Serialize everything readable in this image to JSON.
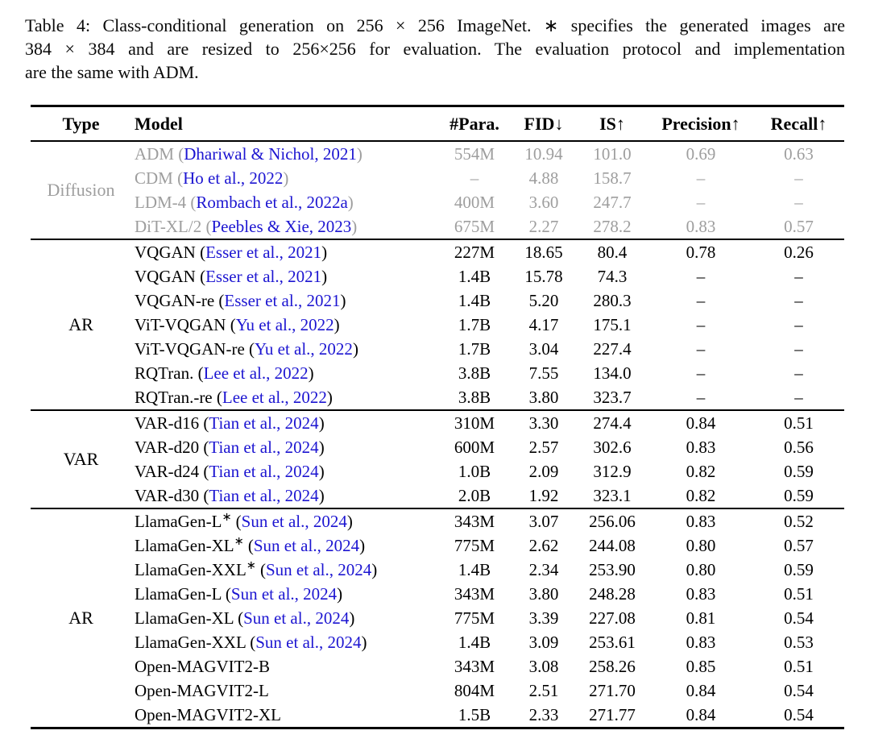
{
  "colors": {
    "link": "#1c15d1",
    "muted_text": "#9e9e9e",
    "text": "#000000",
    "rule": "#000000",
    "background": "#ffffff"
  },
  "caption": {
    "lines": [
      "Table 4: Class-conditional generation on 256 × 256 ImageNet. ∗ specifies the generated images are",
      "384 × 384 and are resized to 256×256 for evaluation. The evaluation protocol and implementation",
      "are the same with ADM."
    ]
  },
  "table": {
    "headers": [
      {
        "id": "type",
        "label": "Type",
        "arrow": ""
      },
      {
        "id": "model",
        "label": "Model",
        "arrow": ""
      },
      {
        "id": "para",
        "label": "#Para.",
        "arrow": ""
      },
      {
        "id": "fid",
        "label": "FID",
        "arrow": "↓"
      },
      {
        "id": "is",
        "label": "IS",
        "arrow": "↑"
      },
      {
        "id": "precision",
        "label": "Precision",
        "arrow": "↑"
      },
      {
        "id": "recall",
        "label": "Recall",
        "arrow": "↑"
      }
    ],
    "sections": [
      {
        "type": "Diffusion",
        "muted": true,
        "rows": [
          {
            "model": "ADM",
            "citation": "Dhariwal & Nichol, 2021",
            "params": "554M",
            "fid": "10.94",
            "is": "101.0",
            "precision": "0.69",
            "recall": "0.63"
          },
          {
            "model": "CDM",
            "citation": "Ho et al., 2022",
            "params": "–",
            "fid": "4.88",
            "is": "158.7",
            "precision": "–",
            "recall": "–"
          },
          {
            "model": "LDM-4",
            "citation": "Rombach et al., 2022a",
            "params": "400M",
            "fid": "3.60",
            "is": "247.7",
            "precision": "–",
            "recall": "–"
          },
          {
            "model": "DiT-XL/2",
            "citation": "Peebles & Xie, 2023",
            "params": "675M",
            "fid": "2.27",
            "is": "278.2",
            "precision": "0.83",
            "recall": "0.57"
          }
        ]
      },
      {
        "type": "AR",
        "muted": false,
        "rows": [
          {
            "model": "VQGAN",
            "citation": "Esser et al., 2021",
            "params": "227M",
            "fid": "18.65",
            "is": "80.4",
            "precision": "0.78",
            "recall": "0.26"
          },
          {
            "model": "VQGAN",
            "citation": "Esser et al., 2021",
            "params": "1.4B",
            "fid": "15.78",
            "is": "74.3",
            "precision": "–",
            "recall": "–"
          },
          {
            "model": "VQGAN-re",
            "citation": "Esser et al., 2021",
            "params": "1.4B",
            "fid": "5.20",
            "is": "280.3",
            "precision": "–",
            "recall": "–"
          },
          {
            "model": "ViT-VQGAN",
            "citation": "Yu et al., 2022",
            "params": "1.7B",
            "fid": "4.17",
            "is": "175.1",
            "precision": "–",
            "recall": "–"
          },
          {
            "model": "ViT-VQGAN-re",
            "citation": "Yu et al., 2022",
            "params": "1.7B",
            "fid": "3.04",
            "is": "227.4",
            "precision": "–",
            "recall": "–"
          },
          {
            "model": "RQTran.",
            "citation": "Lee et al., 2022",
            "params": "3.8B",
            "fid": "7.55",
            "is": "134.0",
            "precision": "–",
            "recall": "–"
          },
          {
            "model": "RQTran.-re",
            "citation": "Lee et al., 2022",
            "params": "3.8B",
            "fid": "3.80",
            "is": "323.7",
            "precision": "–",
            "recall": "–"
          }
        ]
      },
      {
        "type": "VAR",
        "muted": false,
        "rows": [
          {
            "model": "VAR-d16",
            "citation": "Tian et al., 2024",
            "params": "310M",
            "fid": "3.30",
            "is": "274.4",
            "precision": "0.84",
            "recall": "0.51"
          },
          {
            "model": "VAR-d20",
            "citation": "Tian et al., 2024",
            "params": "600M",
            "fid": "2.57",
            "is": "302.6",
            "precision": "0.83",
            "recall": "0.56"
          },
          {
            "model": "VAR-d24",
            "citation": "Tian et al., 2024",
            "params": "1.0B",
            "fid": "2.09",
            "is": "312.9",
            "precision": "0.82",
            "recall": "0.59"
          },
          {
            "model": "VAR-d30",
            "citation": "Tian et al., 2024",
            "params": "2.0B",
            "fid": "1.92",
            "is": "323.1",
            "precision": "0.82",
            "recall": "0.59"
          }
        ]
      },
      {
        "type": "AR",
        "muted": false,
        "rows": [
          {
            "model": "LlamaGen-L*",
            "citation": "Sun et al., 2024",
            "params": "343M",
            "fid": "3.07",
            "is": "256.06",
            "precision": "0.83",
            "recall": "0.52"
          },
          {
            "model": "LlamaGen-XL*",
            "citation": "Sun et al., 2024",
            "params": "775M",
            "fid": "2.62",
            "is": "244.08",
            "precision": "0.80",
            "recall": "0.57"
          },
          {
            "model": "LlamaGen-XXL*",
            "citation": "Sun et al., 2024",
            "params": "1.4B",
            "fid": "2.34",
            "is": "253.90",
            "precision": "0.80",
            "recall": "0.59"
          },
          {
            "model": "LlamaGen-L",
            "citation": "Sun et al., 2024",
            "params": "343M",
            "fid": "3.80",
            "is": "248.28",
            "precision": "0.83",
            "recall": "0.51"
          },
          {
            "model": "LlamaGen-XL",
            "citation": "Sun et al., 2024",
            "params": "775M",
            "fid": "3.39",
            "is": "227.08",
            "precision": "0.81",
            "recall": "0.54"
          },
          {
            "model": "LlamaGen-XXL",
            "citation": "Sun et al., 2024",
            "params": "1.4B",
            "fid": "3.09",
            "is": "253.61",
            "precision": "0.83",
            "recall": "0.53"
          },
          {
            "model": "Open-MAGVIT2-B",
            "citation": null,
            "params": "343M",
            "fid": "3.08",
            "is": "258.26",
            "precision": "0.85",
            "recall": "0.51"
          },
          {
            "model": "Open-MAGVIT2-L",
            "citation": null,
            "params": "804M",
            "fid": "2.51",
            "is": "271.70",
            "precision": "0.84",
            "recall": "0.54"
          },
          {
            "model": "Open-MAGVIT2-XL",
            "citation": null,
            "params": "1.5B",
            "fid": "2.33",
            "is": "271.77",
            "precision": "0.84",
            "recall": "0.54"
          }
        ]
      }
    ]
  }
}
